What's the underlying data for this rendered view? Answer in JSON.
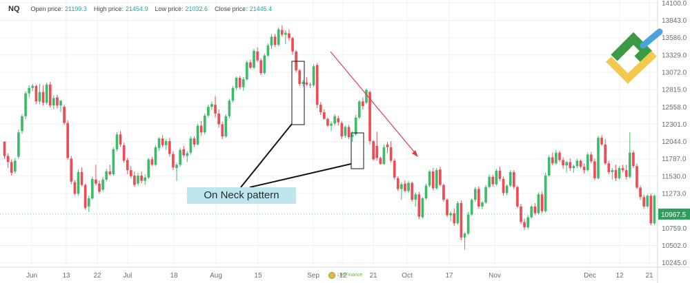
{
  "header": {
    "symbol": "NQ",
    "open_label": "Open price:",
    "open_value": "21199.3",
    "high_label": "High price:",
    "high_value": "21454.9",
    "low_label": "Low price:",
    "low_value": "21032.6",
    "close_label": "Close price:",
    "close_value": "21445.4"
  },
  "annotation": {
    "label": "On Neck pattern"
  },
  "watermark": {
    "text": "LiteFinance"
  },
  "colors": {
    "up": "#3dbb6a",
    "down": "#ee4b57",
    "accent_arrow": "#e23a48",
    "callout_bg": "#bfe6ec",
    "last_price_tag": "#2fa05c",
    "logo_green": "#3c9a45",
    "logo_yellow": "#f2c94c",
    "logo_blue": "#4aa3df"
  },
  "chart_data": {
    "type": "candlestick",
    "y_ticks": [
      14100.0,
      13843.0,
      13586.0,
      13329.0,
      13072.0,
      12815.0,
      12558.0,
      12301.0,
      12044.0,
      11787.0,
      11530.0,
      11273.0,
      10759.0,
      10502.0,
      10245.0
    ],
    "ylim": [
      10200,
      14145
    ],
    "x_ticks": [
      "Jun",
      "13",
      "22",
      "Jul",
      "18",
      "Aug",
      "15",
      "Sep",
      "12",
      "21",
      "Oct",
      "17",
      "Nov",
      "Dec",
      "12",
      "21"
    ],
    "last_price": 10967.5,
    "grid": true,
    "ohlc": [
      [
        12044,
        12044,
        11787,
        11830
      ],
      [
        11830,
        11870,
        11650,
        11740
      ],
      [
        11740,
        11780,
        11540,
        11580
      ],
      [
        11600,
        11800,
        11570,
        11760
      ],
      [
        11820,
        12224,
        11790,
        12180
      ],
      [
        12200,
        12450,
        12160,
        12420
      ],
      [
        12420,
        12790,
        12380,
        12760
      ],
      [
        12760,
        12880,
        12700,
        12840
      ],
      [
        12840,
        12900,
        12790,
        12870
      ],
      [
        12870,
        12890,
        12600,
        12640
      ],
      [
        12640,
        12900,
        12600,
        12780
      ],
      [
        12780,
        12880,
        12580,
        12620
      ],
      [
        12620,
        12920,
        12590,
        12890
      ],
      [
        12890,
        12930,
        12550,
        12580
      ],
      [
        12580,
        12730,
        12520,
        12690
      ],
      [
        12700,
        12740,
        12540,
        12580
      ],
      [
        12580,
        12660,
        12480,
        12650
      ],
      [
        12560,
        12590,
        12290,
        12320
      ],
      [
        12320,
        12360,
        11770,
        11800
      ],
      [
        11790,
        11830,
        11410,
        11450
      ],
      [
        11440,
        11470,
        11250,
        11270
      ],
      [
        11270,
        11630,
        11240,
        11590
      ],
      [
        11590,
        11660,
        11380,
        11400
      ],
      [
        11400,
        11420,
        11030,
        11060
      ],
      [
        11080,
        11240,
        11000,
        11200
      ],
      [
        11200,
        11520,
        11180,
        11490
      ],
      [
        11480,
        11700,
        11390,
        11420
      ],
      [
        11420,
        11470,
        11270,
        11300
      ],
      [
        11330,
        11520,
        11300,
        11480
      ],
      [
        11480,
        11640,
        11450,
        11600
      ],
      [
        11600,
        11700,
        11540,
        11560
      ],
      [
        11560,
        11960,
        11540,
        11930
      ],
      [
        11930,
        12180,
        11900,
        12150
      ],
      [
        12150,
        12200,
        11970,
        12000
      ],
      [
        11990,
        12030,
        11730,
        11760
      ],
      [
        11770,
        11800,
        11560,
        11620
      ],
      [
        11620,
        11680,
        11500,
        11530
      ],
      [
        11540,
        11600,
        11370,
        11400
      ],
      [
        11420,
        11580,
        11390,
        11540
      ],
      [
        11540,
        11600,
        11420,
        11460
      ],
      [
        11460,
        11560,
        11400,
        11510
      ],
      [
        11510,
        11800,
        11490,
        11780
      ],
      [
        11780,
        11820,
        11680,
        11700
      ],
      [
        11700,
        11990,
        11680,
        11960
      ],
      [
        11950,
        12110,
        11910,
        12090
      ],
      [
        12090,
        12140,
        11960,
        11990
      ],
      [
        11990,
        12080,
        11920,
        12050
      ],
      [
        12050,
        12100,
        11820,
        11860
      ],
      [
        11860,
        11900,
        11620,
        11660
      ],
      [
        11650,
        11730,
        11460,
        11700
      ],
      [
        11700,
        11950,
        11670,
        11920
      ],
      [
        11930,
        11980,
        11810,
        11840
      ],
      [
        11830,
        11900,
        11740,
        11870
      ],
      [
        11880,
        12120,
        11850,
        12090
      ],
      [
        12090,
        12120,
        11960,
        12000
      ],
      [
        12000,
        12310,
        11990,
        12280
      ],
      [
        12280,
        12350,
        12130,
        12180
      ],
      [
        12180,
        12460,
        12150,
        12430
      ],
      [
        12430,
        12590,
        12400,
        12560
      ],
      [
        12560,
        12640,
        12520,
        12600
      ],
      [
        12590,
        12720,
        12400,
        12460
      ],
      [
        12460,
        12520,
        12250,
        12300
      ],
      [
        12300,
        12340,
        12080,
        12120
      ],
      [
        12120,
        12450,
        12100,
        12420
      ],
      [
        12420,
        12680,
        12390,
        12650
      ],
      [
        12650,
        12870,
        12630,
        12840
      ],
      [
        12840,
        13010,
        12810,
        12990
      ],
      [
        12990,
        13020,
        12820,
        12850
      ],
      [
        12850,
        13000,
        12800,
        12970
      ],
      [
        12970,
        13250,
        12950,
        13220
      ],
      [
        13220,
        13260,
        13120,
        13140
      ],
      [
        13140,
        13420,
        13120,
        13390
      ],
      [
        13380,
        13440,
        13220,
        13250
      ],
      [
        13250,
        13280,
        13030,
        13060
      ],
      [
        13060,
        13350,
        13040,
        13320
      ],
      [
        13320,
        13500,
        13300,
        13470
      ],
      [
        13470,
        13640,
        13420,
        13600
      ],
      [
        13600,
        13640,
        13450,
        13480
      ],
      [
        13480,
        13740,
        13460,
        13710
      ],
      [
        13700,
        13770,
        13600,
        13630
      ],
      [
        13630,
        13700,
        13490,
        13660
      ],
      [
        13650,
        13710,
        13540,
        13580
      ],
      [
        13580,
        13600,
        13330,
        13380
      ],
      [
        13380,
        13400,
        13070,
        13100
      ],
      [
        13100,
        13120,
        12870,
        12900
      ],
      [
        12900,
        12960,
        12860,
        12930
      ],
      [
        12920,
        13000,
        12870,
        12890
      ],
      [
        12890,
        12920,
        12840,
        12880
      ],
      [
        12880,
        13190,
        12860,
        13160
      ],
      [
        13180,
        13210,
        12540,
        12590
      ],
      [
        12590,
        12630,
        12440,
        12480
      ],
      [
        12480,
        12520,
        12370,
        12380
      ],
      [
        12380,
        12400,
        12260,
        12280
      ],
      [
        12280,
        12340,
        12200,
        12310
      ],
      [
        12310,
        12450,
        12280,
        12420
      ],
      [
        12390,
        12430,
        12280,
        12330
      ],
      [
        12320,
        12350,
        12080,
        12120
      ],
      [
        12130,
        12280,
        12100,
        12260
      ],
      [
        12260,
        12290,
        12080,
        12110
      ],
      [
        12110,
        12200,
        12040,
        12150
      ],
      [
        12150,
        12440,
        12130,
        12400
      ],
      [
        12400,
        12660,
        12380,
        12640
      ],
      [
        12640,
        12700,
        12520,
        12570
      ],
      [
        12620,
        12830,
        12600,
        12810
      ],
      [
        12780,
        12800,
        12000,
        12050
      ],
      [
        12050,
        12070,
        11760,
        11780
      ],
      [
        11980,
        12190,
        11760,
        11800
      ],
      [
        11800,
        11820,
        11700,
        11710
      ],
      [
        11710,
        12000,
        11700,
        11960
      ],
      [
        12000,
        12040,
        11870,
        11960
      ],
      [
        11960,
        12050,
        11730,
        11760
      ],
      [
        11760,
        11790,
        11480,
        11510
      ],
      [
        11500,
        11530,
        11310,
        11340
      ],
      [
        11340,
        11440,
        11180,
        11410
      ],
      [
        11420,
        11470,
        11290,
        11310
      ],
      [
        11310,
        11460,
        11280,
        11430
      ],
      [
        11430,
        11450,
        11150,
        11180
      ],
      [
        11180,
        11290,
        11080,
        11260
      ],
      [
        11260,
        11300,
        10890,
        10930
      ],
      [
        10920,
        11220,
        10900,
        11200
      ],
      [
        11200,
        11420,
        11180,
        11390
      ],
      [
        11390,
        11620,
        11370,
        11600
      ],
      [
        11600,
        11650,
        11320,
        11350
      ],
      [
        11350,
        11650,
        11330,
        11620
      ],
      [
        11630,
        11670,
        11380,
        11400
      ],
      [
        11400,
        11420,
        11150,
        11180
      ],
      [
        11180,
        11200,
        10920,
        10950
      ],
      [
        10950,
        11010,
        10860,
        10980
      ],
      [
        10980,
        11050,
        10790,
        10830
      ],
      [
        10830,
        11160,
        10810,
        11130
      ],
      [
        11130,
        11170,
        10580,
        10620
      ],
      [
        10620,
        10700,
        10440,
        10680
      ],
      [
        10680,
        11000,
        10660,
        10960
      ],
      [
        10960,
        11200,
        10940,
        11180
      ],
      [
        11180,
        11370,
        11150,
        11340
      ],
      [
        11340,
        11380,
        11050,
        11080
      ],
      [
        11080,
        11160,
        11040,
        11140
      ],
      [
        11140,
        11400,
        11120,
        11370
      ],
      [
        11370,
        11560,
        11350,
        11520
      ],
      [
        11520,
        11550,
        11380,
        11410
      ],
      [
        11410,
        11640,
        11390,
        11610
      ],
      [
        11610,
        11670,
        11460,
        11490
      ],
      [
        11490,
        11520,
        11240,
        11280
      ],
      [
        11280,
        11410,
        11250,
        11390
      ],
      [
        11390,
        11620,
        11370,
        11590
      ],
      [
        11590,
        11620,
        11340,
        11370
      ],
      [
        11370,
        11390,
        11060,
        11080
      ],
      [
        11080,
        11120,
        10820,
        10850
      ],
      [
        10850,
        10900,
        10730,
        10770
      ],
      [
        10770,
        10950,
        10740,
        10920
      ],
      [
        10920,
        11100,
        10900,
        11080
      ],
      [
        11080,
        11130,
        10950,
        10980
      ],
      [
        10980,
        11290,
        10960,
        11260
      ],
      [
        11260,
        11300,
        10980,
        11010
      ],
      [
        11010,
        11580,
        10990,
        11540
      ],
      [
        11540,
        11840,
        11520,
        11810
      ],
      [
        11810,
        11880,
        11690,
        11720
      ],
      [
        11720,
        11920,
        11700,
        11880
      ],
      [
        11880,
        11910,
        11740,
        11770
      ],
      [
        11770,
        11810,
        11640,
        11690
      ],
      [
        11690,
        11760,
        11580,
        11740
      ],
      [
        11740,
        11790,
        11610,
        11650
      ],
      [
        11650,
        11700,
        11580,
        11680
      ],
      [
        11680,
        11790,
        11650,
        11760
      ],
      [
        11760,
        11780,
        11650,
        11670
      ],
      [
        11670,
        11720,
        11570,
        11620
      ],
      [
        11620,
        11880,
        11600,
        11850
      ],
      [
        11850,
        11890,
        11720,
        11750
      ],
      [
        11750,
        11790,
        11470,
        11500
      ],
      [
        11500,
        12130,
        11480,
        12100
      ],
      [
        12100,
        12140,
        11980,
        12000
      ],
      [
        12000,
        12080,
        11690,
        11720
      ],
      [
        11720,
        11760,
        11560,
        11590
      ],
      [
        11590,
        11650,
        11480,
        11620
      ],
      [
        11620,
        11700,
        11460,
        11500
      ],
      [
        11500,
        11680,
        11480,
        11650
      ],
      [
        11650,
        11700,
        11590,
        11620
      ],
      [
        11620,
        11700,
        11480,
        11520
      ],
      [
        11520,
        12180,
        11500,
        11880
      ],
      [
        11880,
        11910,
        11650,
        11680
      ],
      [
        11680,
        11720,
        11340,
        11360
      ],
      [
        11360,
        11390,
        11180,
        11220
      ],
      [
        11220,
        11260,
        11050,
        11080
      ],
      [
        11080,
        11260,
        11060,
        11240
      ],
      [
        11240,
        11270,
        10800,
        10830
      ],
      [
        10830,
        11260,
        10810,
        11240
      ]
    ]
  }
}
